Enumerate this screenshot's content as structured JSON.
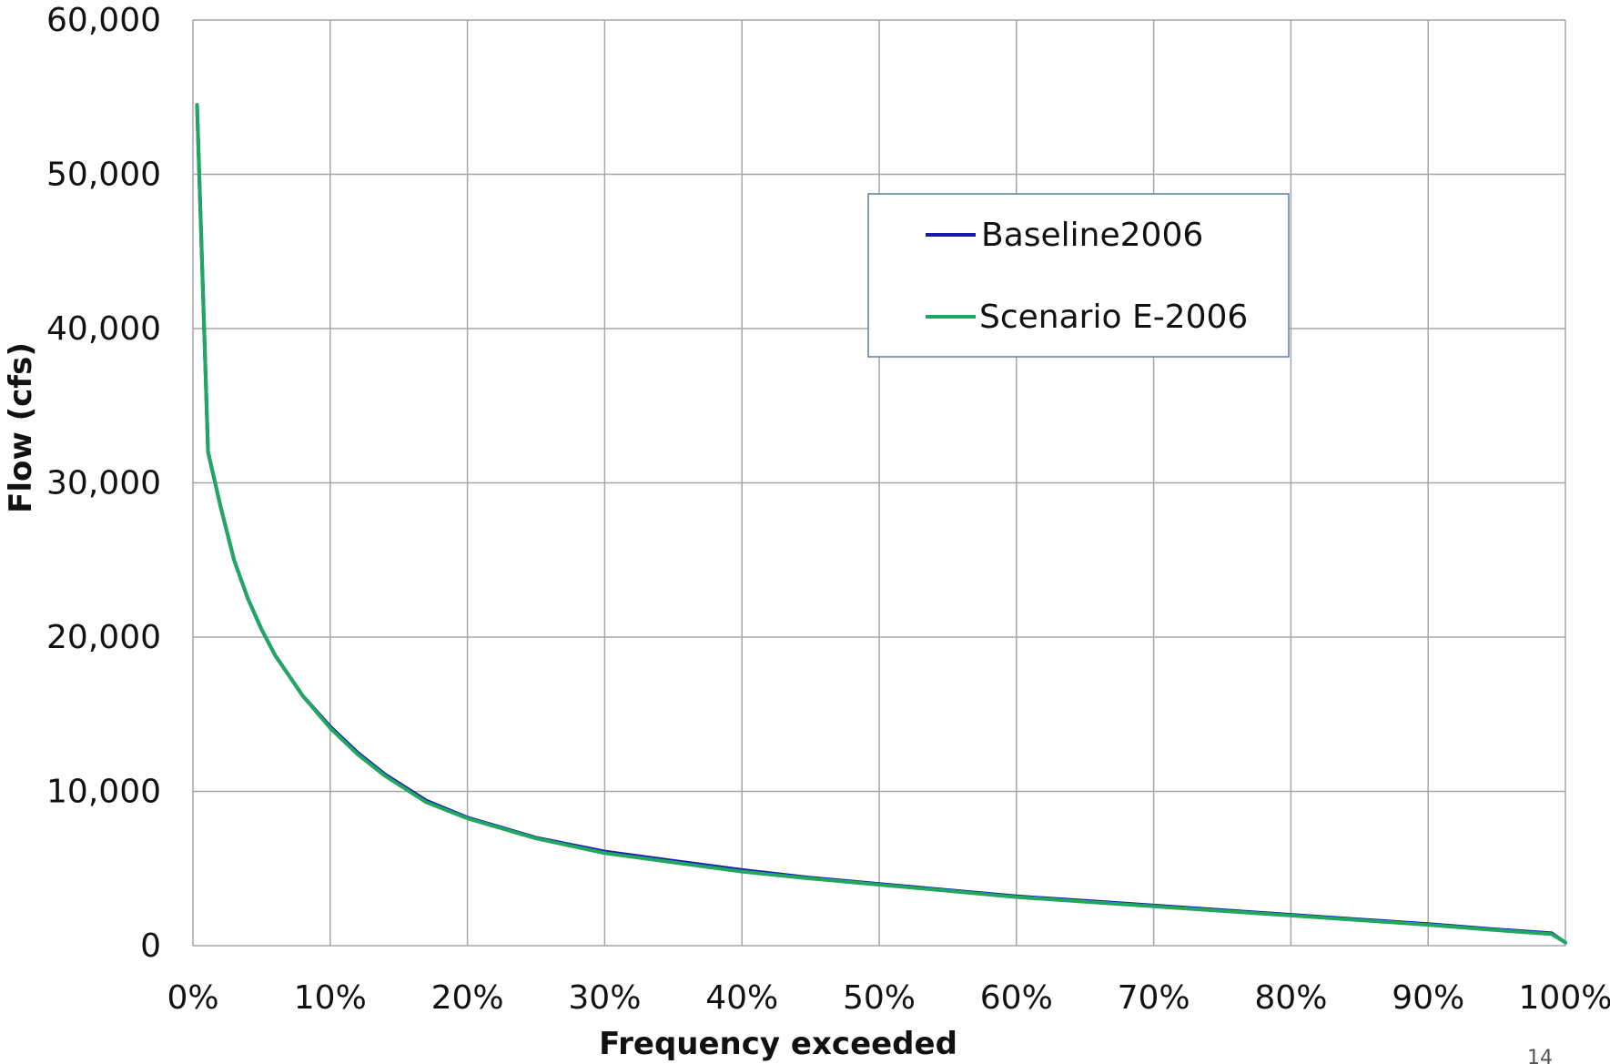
{
  "page": {
    "page_number": "14"
  },
  "chart_data": {
    "type": "line",
    "title": "",
    "xlabel": "Frequency exceeded",
    "ylabel": "Flow (cfs)",
    "xlim": [
      0,
      100
    ],
    "ylim": [
      0,
      60000
    ],
    "x_unit": "%",
    "x_ticks": [
      0,
      10,
      20,
      30,
      40,
      50,
      60,
      70,
      80,
      90,
      100
    ],
    "x_tick_labels": [
      "0%",
      "10%",
      "20%",
      "30%",
      "40%",
      "50%",
      "60%",
      "70%",
      "80%",
      "90%",
      "100%"
    ],
    "y_ticks": [
      0,
      10000,
      20000,
      30000,
      40000,
      50000,
      60000
    ],
    "y_tick_labels": [
      "0",
      "10,000",
      "20,000",
      "30,000",
      "40,000",
      "50,000",
      "60,000"
    ],
    "grid": true,
    "legend_position": "upper-center-right",
    "x": [
      0.3,
      1.1,
      2,
      3,
      4,
      5,
      6,
      8,
      10,
      12,
      14,
      17,
      20,
      25,
      30,
      35,
      40,
      45,
      50,
      55,
      60,
      65,
      70,
      75,
      80,
      85,
      90,
      95,
      99,
      100
    ],
    "series": [
      {
        "name": "Baseline2006",
        "color": "#1a1ab0",
        "values": [
          54500,
          32000,
          28500,
          25000,
          22500,
          20500,
          18800,
          16200,
          14200,
          12500,
          11100,
          9400,
          8300,
          7000,
          6100,
          5500,
          4900,
          4400,
          4000,
          3600,
          3200,
          2900,
          2600,
          2300,
          2000,
          1700,
          1400,
          1050,
          800,
          200
        ]
      },
      {
        "name": "Scenario E-2006",
        "color": "#20a860",
        "values": [
          54500,
          32000,
          28500,
          25000,
          22500,
          20500,
          18800,
          16200,
          14100,
          12400,
          11000,
          9300,
          8250,
          6950,
          6000,
          5400,
          4800,
          4350,
          3950,
          3550,
          3150,
          2850,
          2550,
          2250,
          1950,
          1650,
          1350,
          1000,
          750,
          200
        ]
      }
    ]
  }
}
